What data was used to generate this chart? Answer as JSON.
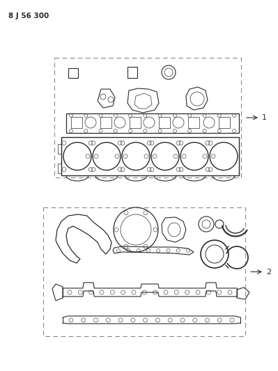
{
  "title": "8 J 56 300",
  "background_color": "#ffffff",
  "line_color": "#2a2a2a",
  "dashed_color": "#888888",
  "label1": "1",
  "label2": "2",
  "fig_width": 3.99,
  "fig_height": 5.33,
  "dpi": 100
}
